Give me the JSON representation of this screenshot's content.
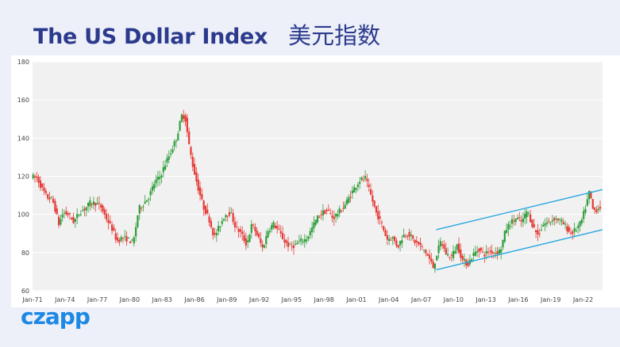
{
  "title": {
    "en": "The US Dollar Index",
    "zh": "美元指数"
  },
  "logo": "czapp",
  "colors": {
    "up": "#2e9e3a",
    "down": "#e53935",
    "channel": "#29a8e0",
    "plot_bg": "#f1f1f1",
    "title": "#2b3a8c"
  },
  "chart_data": {
    "type": "candlestick",
    "title": "",
    "xlabel": "",
    "ylabel": "",
    "ylim": [
      60,
      180
    ],
    "yticks": [
      60,
      80,
      100,
      120,
      140,
      160,
      180
    ],
    "xlim": [
      1971.0,
      2023.8
    ],
    "xticks": [
      {
        "x": 1971,
        "label": "Jan-71"
      },
      {
        "x": 1974,
        "label": "Jan-74"
      },
      {
        "x": 1977,
        "label": "Jan-77"
      },
      {
        "x": 1980,
        "label": "Jan-80"
      },
      {
        "x": 1983,
        "label": "Jan-83"
      },
      {
        "x": 1986,
        "label": "Jan-86"
      },
      {
        "x": 1989,
        "label": "Jan-89"
      },
      {
        "x": 1992,
        "label": "Jan-92"
      },
      {
        "x": 1995,
        "label": "Jan-95"
      },
      {
        "x": 1998,
        "label": "Jan-98"
      },
      {
        "x": 2001,
        "label": "Jan-01"
      },
      {
        "x": 2004,
        "label": "Jan-04"
      },
      {
        "x": 2007,
        "label": "Jan-07"
      },
      {
        "x": 2010,
        "label": "Jan-10"
      },
      {
        "x": 2013,
        "label": "Jan-13"
      },
      {
        "x": 2016,
        "label": "Jan-16"
      },
      {
        "x": 2019,
        "label": "Jan-19"
      },
      {
        "x": 2022,
        "label": "Jan-22"
      }
    ],
    "grid": true,
    "series_path": [
      [
        1971.0,
        120
      ],
      [
        1971.6,
        119
      ],
      [
        1972.0,
        114
      ],
      [
        1972.5,
        109
      ],
      [
        1973.0,
        108
      ],
      [
        1973.3,
        102
      ],
      [
        1973.6,
        95
      ],
      [
        1974.0,
        101
      ],
      [
        1974.5,
        100
      ],
      [
        1975.0,
        96
      ],
      [
        1975.5,
        101
      ],
      [
        1976.0,
        103
      ],
      [
        1976.5,
        106
      ],
      [
        1977.0,
        106
      ],
      [
        1977.5,
        104
      ],
      [
        1978.0,
        98
      ],
      [
        1978.5,
        93
      ],
      [
        1979.0,
        86
      ],
      [
        1979.5,
        88
      ],
      [
        1980.0,
        87
      ],
      [
        1980.5,
        85
      ],
      [
        1981.0,
        103
      ],
      [
        1981.5,
        106
      ],
      [
        1982.0,
        110
      ],
      [
        1982.5,
        117
      ],
      [
        1983.0,
        120
      ],
      [
        1983.5,
        127
      ],
      [
        1984.0,
        133
      ],
      [
        1984.5,
        140
      ],
      [
        1985.0,
        152
      ],
      [
        1985.3,
        151
      ],
      [
        1985.7,
        135
      ],
      [
        1986.0,
        126
      ],
      [
        1986.5,
        114
      ],
      [
        1987.0,
        104
      ],
      [
        1987.5,
        98
      ],
      [
        1988.0,
        88
      ],
      [
        1988.5,
        94
      ],
      [
        1989.0,
        100
      ],
      [
        1989.5,
        101
      ],
      [
        1990.0,
        93
      ],
      [
        1990.5,
        90
      ],
      [
        1991.0,
        84
      ],
      [
        1991.5,
        95
      ],
      [
        1992.0,
        89
      ],
      [
        1992.5,
        82
      ],
      [
        1993.0,
        92
      ],
      [
        1993.5,
        95
      ],
      [
        1994.0,
        91
      ],
      [
        1994.5,
        86
      ],
      [
        1995.0,
        83
      ],
      [
        1995.5,
        84
      ],
      [
        1996.0,
        86
      ],
      [
        1996.5,
        87
      ],
      [
        1997.0,
        92
      ],
      [
        1997.5,
        98
      ],
      [
        1998.0,
        101
      ],
      [
        1998.5,
        102
      ],
      [
        1999.0,
        98
      ],
      [
        1999.5,
        101
      ],
      [
        2000.0,
        104
      ],
      [
        2000.5,
        109
      ],
      [
        2001.0,
        114
      ],
      [
        2001.5,
        118
      ],
      [
        2002.0,
        119
      ],
      [
        2002.5,
        110
      ],
      [
        2003.0,
        101
      ],
      [
        2003.5,
        95
      ],
      [
        2004.0,
        87
      ],
      [
        2004.5,
        88
      ],
      [
        2005.0,
        83
      ],
      [
        2005.5,
        89
      ],
      [
        2006.0,
        90
      ],
      [
        2006.5,
        86
      ],
      [
        2007.0,
        84
      ],
      [
        2007.5,
        81
      ],
      [
        2008.0,
        76
      ],
      [
        2008.3,
        72
      ],
      [
        2008.6,
        79
      ],
      [
        2009.0,
        86
      ],
      [
        2009.5,
        79
      ],
      [
        2010.0,
        78
      ],
      [
        2010.5,
        84
      ],
      [
        2011.0,
        76
      ],
      [
        2011.5,
        74
      ],
      [
        2012.0,
        79
      ],
      [
        2012.5,
        82
      ],
      [
        2013.0,
        79
      ],
      [
        2013.5,
        81
      ],
      [
        2014.0,
        80
      ],
      [
        2014.5,
        81
      ],
      [
        2015.0,
        92
      ],
      [
        2015.5,
        96
      ],
      [
        2016.0,
        98
      ],
      [
        2016.5,
        96
      ],
      [
        2017.0,
        102
      ],
      [
        2017.5,
        94
      ],
      [
        2018.0,
        89
      ],
      [
        2018.5,
        95
      ],
      [
        2019.0,
        96
      ],
      [
        2019.5,
        98
      ],
      [
        2020.0,
        97
      ],
      [
        2020.5,
        94
      ],
      [
        2021.0,
        90
      ],
      [
        2021.5,
        92
      ],
      [
        2022.0,
        96
      ],
      [
        2022.5,
        106
      ],
      [
        2022.8,
        113
      ],
      [
        2023.0,
        103
      ],
      [
        2023.3,
        102
      ],
      [
        2023.7,
        104
      ]
    ],
    "channel": {
      "upper": [
        [
          2008.4,
          92
        ],
        [
          2023.8,
          113
        ]
      ],
      "lower": [
        [
          2008.4,
          71
        ],
        [
          2023.8,
          92
        ]
      ]
    }
  }
}
